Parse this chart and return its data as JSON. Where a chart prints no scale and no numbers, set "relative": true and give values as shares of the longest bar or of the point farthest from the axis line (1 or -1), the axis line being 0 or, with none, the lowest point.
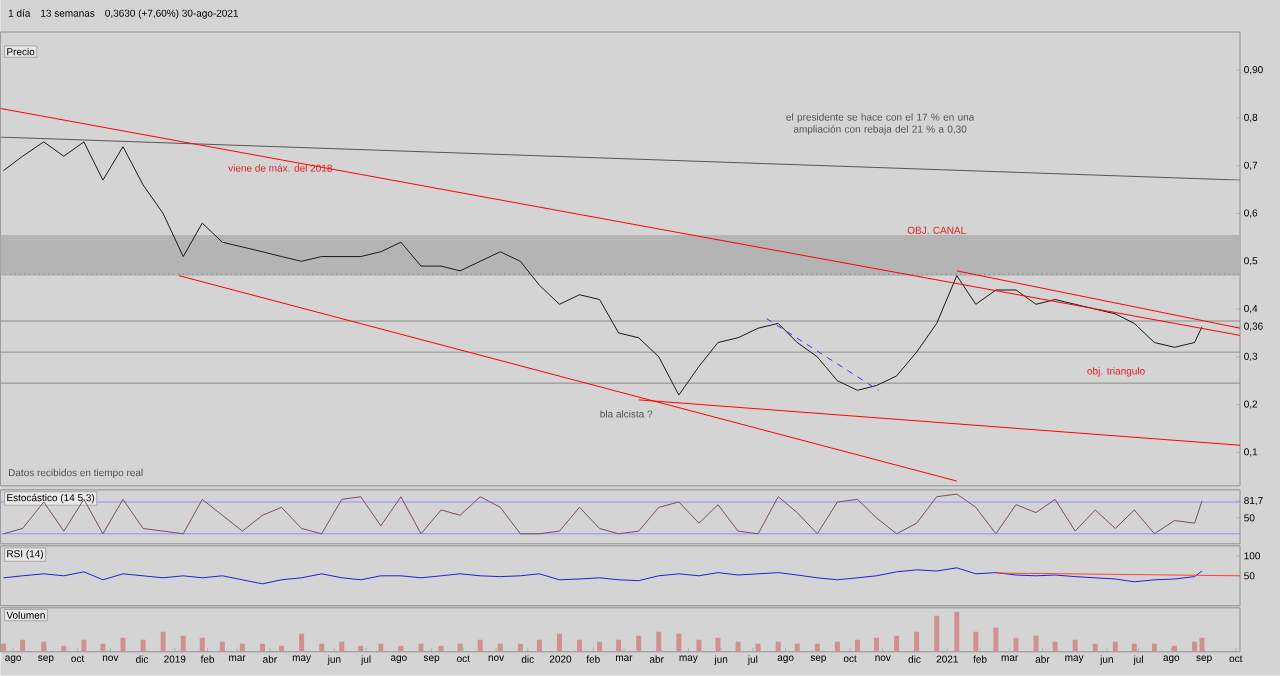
{
  "chart_data": [
    {
      "type": "line",
      "title": "Precio",
      "xlim": [
        "2018-07-20",
        "2021-10-05"
      ],
      "ylim": [
        0.03,
        0.98
      ],
      "tick_labels": "y",
      "yticks": [
        {
          "value": 0.1,
          "label": "0,1"
        },
        {
          "value": 0.2,
          "label": "0,2"
        },
        {
          "value": 0.3,
          "label": "0,3"
        },
        {
          "value": 0.363,
          "label": "0,36"
        },
        {
          "value": 0.4,
          "label": "0,4"
        },
        {
          "value": 0.5,
          "label": "0,5"
        },
        {
          "value": 0.6,
          "label": "0,6"
        },
        {
          "value": 0.7,
          "label": "0,7"
        },
        {
          "value": 0.8,
          "label": "0,8"
        },
        {
          "value": 0.9,
          "label": "0,90"
        }
      ],
      "x": [
        "2018-07-23",
        "2018-08-10",
        "2018-08-30",
        "2018-09-18",
        "2018-10-07",
        "2018-10-25",
        "2018-11-13",
        "2018-12-02",
        "2018-12-21",
        "2019-01-09",
        "2019-01-27",
        "2019-02-15",
        "2019-03-06",
        "2019-03-25",
        "2019-04-12",
        "2019-05-01",
        "2019-05-20",
        "2019-06-08",
        "2019-06-26",
        "2019-07-15",
        "2019-08-03",
        "2019-08-22",
        "2019-09-10",
        "2019-09-28",
        "2019-10-17",
        "2019-11-05",
        "2019-11-24",
        "2019-12-12",
        "2019-12-31",
        "2020-01-19",
        "2020-02-07",
        "2020-02-25",
        "2020-03-15",
        "2020-04-03",
        "2020-04-22",
        "2020-05-11",
        "2020-05-29",
        "2020-06-17",
        "2020-07-06",
        "2020-07-25",
        "2020-08-12",
        "2020-08-31",
        "2020-09-19",
        "2020-10-08",
        "2020-10-26",
        "2020-11-14",
        "2020-12-03",
        "2020-12-22",
        "2021-01-10",
        "2021-01-28",
        "2021-02-16",
        "2021-03-07",
        "2021-03-26",
        "2021-04-13",
        "2021-05-02",
        "2021-05-21",
        "2021-06-09",
        "2021-06-27",
        "2021-07-16",
        "2021-08-04",
        "2021-08-23",
        "2021-08-30"
      ],
      "series": [
        {
          "color": "#1a1a1a",
          "values": [
            0.69,
            0.72,
            0.75,
            0.72,
            0.75,
            0.67,
            0.74,
            0.66,
            0.6,
            0.51,
            0.58,
            0.54,
            0.53,
            0.52,
            0.51,
            0.5,
            0.51,
            0.51,
            0.51,
            0.52,
            0.54,
            0.49,
            0.49,
            0.48,
            0.5,
            0.52,
            0.5,
            0.45,
            0.41,
            0.43,
            0.42,
            0.35,
            0.34,
            0.3,
            0.22,
            0.28,
            0.33,
            0.34,
            0.36,
            0.37,
            0.33,
            0.3,
            0.25,
            0.23,
            0.24,
            0.26,
            0.31,
            0.37,
            0.47,
            0.41,
            0.44,
            0.44,
            0.41,
            0.42,
            0.41,
            0.4,
            0.39,
            0.37,
            0.33,
            0.32,
            0.33,
            0.363
          ]
        },
        {
          "type": "line",
          "color": "#555555",
          "x": [
            "2018-07-20",
            "2021-10-05"
          ],
          "values": [
            0.76,
            0.67
          ]
        },
        {
          "type": "line",
          "color": "#ff0000",
          "x": [
            "2018-07-20",
            "2021-10-05"
          ],
          "values": [
            0.82,
            0.345
          ]
        },
        {
          "type": "line",
          "color": "#ff0000",
          "x": [
            "2019-01-05",
            "2021-01-10"
          ],
          "values": [
            0.47,
            0.04
          ]
        },
        {
          "type": "line",
          "color": "#ff0000",
          "x": [
            "2020-03-15",
            "2021-10-05"
          ],
          "values": [
            0.21,
            0.115
          ]
        },
        {
          "type": "line",
          "color": "#ff0000",
          "x": [
            "2021-01-10",
            "2021-10-05"
          ],
          "values": [
            0.48,
            0.36
          ]
        },
        {
          "type": "line",
          "color": "#3030ff",
          "line_style": "dashed",
          "x": [
            "2020-07-14",
            "2020-10-28"
          ],
          "values": [
            0.38,
            0.23
          ]
        }
      ],
      "bands": [
        {
          "axis": "y",
          "from": 0.47,
          "to": 0.555,
          "color": "#b4b4b4"
        }
      ],
      "ref_lines": [
        {
          "axis": "y",
          "value": 0.473,
          "color": "#555555",
          "line_style": "dotted"
        },
        {
          "axis": "y",
          "value": 0.375,
          "color": "#777777"
        },
        {
          "axis": "y",
          "value": 0.31,
          "color": "#777777"
        },
        {
          "axis": "y",
          "value": 0.245,
          "color": "#777777"
        }
      ],
      "annotations": [
        "1 día",
        "13 semanas",
        "0,3630 (+7,60%) 30-ago-2021",
        "Datos recibidos en tiempo real",
        "el presidente se hace con el 17 % en una ampliación con rebaja del 21 % a 0,30",
        "obj. triangulo",
        "bla alcista ?",
        "viene de máx. del 2018",
        {
          "text": "OBJ. CANAL",
          "x": "2020-12-22",
          "y": 0.565
        }
      ]
    },
    {
      "type": "line",
      "title": "Estocástico (14 5 3)",
      "xlim": [
        "2018-07-20",
        "2021-10-05"
      ],
      "ylim": [
        1,
        103
      ],
      "tick_labels": "y",
      "yticks": [
        {
          "value": 50,
          "label": "50"
        },
        {
          "value": 81.7,
          "label": "81,7"
        }
      ],
      "x": [
        "2018-07-23",
        "2018-08-10",
        "2018-08-30",
        "2018-09-18",
        "2018-10-07",
        "2018-10-25",
        "2018-11-13",
        "2018-12-02",
        "2018-12-21",
        "2019-01-09",
        "2019-01-27",
        "2019-02-15",
        "2019-03-06",
        "2019-03-25",
        "2019-04-12",
        "2019-05-01",
        "2019-05-20",
        "2019-06-08",
        "2019-06-26",
        "2019-07-15",
        "2019-08-03",
        "2019-08-22",
        "2019-09-10",
        "2019-09-28",
        "2019-10-17",
        "2019-11-05",
        "2019-11-24",
        "2019-12-12",
        "2019-12-31",
        "2020-01-19",
        "2020-02-07",
        "2020-02-25",
        "2020-03-15",
        "2020-04-03",
        "2020-04-22",
        "2020-05-11",
        "2020-05-29",
        "2020-06-17",
        "2020-07-06",
        "2020-07-25",
        "2020-08-12",
        "2020-08-31",
        "2020-09-19",
        "2020-10-08",
        "2020-10-26",
        "2020-11-14",
        "2020-12-03",
        "2020-12-22",
        "2021-01-10",
        "2021-01-28",
        "2021-02-16",
        "2021-03-07",
        "2021-03-26",
        "2021-04-13",
        "2021-05-02",
        "2021-05-21",
        "2021-06-09",
        "2021-06-27",
        "2021-07-16",
        "2021-08-04",
        "2021-08-23",
        "2021-08-30"
      ],
      "series": [
        {
          "color": "#7a5050",
          "values": [
            20,
            30,
            80,
            25,
            85,
            20,
            85,
            30,
            25,
            20,
            85,
            55,
            25,
            55,
            70,
            30,
            20,
            85,
            90,
            35,
            90,
            20,
            65,
            55,
            90,
            70,
            20,
            20,
            25,
            70,
            30,
            20,
            25,
            70,
            80,
            40,
            75,
            25,
            20,
            90,
            60,
            20,
            80,
            85,
            50,
            20,
            40,
            90,
            95,
            70,
            20,
            75,
            60,
            85,
            25,
            65,
            30,
            65,
            20,
            45,
            40,
            82
          ]
        }
      ],
      "ref_lines": [
        {
          "axis": "y",
          "value": 80,
          "color": "#8080ff"
        },
        {
          "axis": "y",
          "value": 20,
          "color": "#8080ff"
        }
      ]
    },
    {
      "type": "line",
      "title": "RSI (14)",
      "xlim": [
        "2018-07-20",
        "2021-10-05"
      ],
      "ylim": [
        -25,
        125
      ],
      "tick_labels": "y",
      "yticks": [
        50,
        100
      ],
      "x": [
        "2018-07-23",
        "2018-08-10",
        "2018-08-30",
        "2018-09-18",
        "2018-10-07",
        "2018-10-25",
        "2018-11-13",
        "2018-12-02",
        "2018-12-21",
        "2019-01-09",
        "2019-01-27",
        "2019-02-15",
        "2019-03-06",
        "2019-03-25",
        "2019-04-12",
        "2019-05-01",
        "2019-05-20",
        "2019-06-08",
        "2019-06-26",
        "2019-07-15",
        "2019-08-03",
        "2019-08-22",
        "2019-09-10",
        "2019-09-28",
        "2019-10-17",
        "2019-11-05",
        "2019-11-24",
        "2019-12-12",
        "2019-12-31",
        "2020-01-19",
        "2020-02-07",
        "2020-02-25",
        "2020-03-15",
        "2020-04-03",
        "2020-04-22",
        "2020-05-11",
        "2020-05-29",
        "2020-06-17",
        "2020-07-06",
        "2020-07-25",
        "2020-08-12",
        "2020-08-31",
        "2020-09-19",
        "2020-10-08",
        "2020-10-26",
        "2020-11-14",
        "2020-12-03",
        "2020-12-22",
        "2021-01-10",
        "2021-01-28",
        "2021-02-16",
        "2021-03-07",
        "2021-03-26",
        "2021-04-13",
        "2021-05-02",
        "2021-05-21",
        "2021-06-09",
        "2021-06-27",
        "2021-07-16",
        "2021-08-04",
        "2021-08-23",
        "2021-08-30"
      ],
      "series": [
        {
          "color": "#2020d0",
          "values": [
            45,
            50,
            55,
            50,
            60,
            40,
            55,
            50,
            45,
            50,
            45,
            50,
            40,
            30,
            40,
            45,
            55,
            45,
            40,
            50,
            50,
            45,
            50,
            55,
            50,
            48,
            50,
            55,
            40,
            42,
            45,
            40,
            38,
            50,
            55,
            50,
            58,
            52,
            55,
            58,
            52,
            45,
            40,
            45,
            50,
            60,
            65,
            62,
            70,
            55,
            58,
            52,
            50,
            52,
            48,
            45,
            42,
            35,
            40,
            42,
            48,
            62
          ]
        },
        {
          "type": "line",
          "color": "#ff4040",
          "x": [
            "2021-02-16",
            "2021-10-05"
          ],
          "values": [
            57,
            50
          ]
        }
      ]
    },
    {
      "type": "bar",
      "title": "Volumen",
      "relative": true,
      "xlim": [
        "2018-07-20",
        "2021-10-05"
      ],
      "tick_labels": "x",
      "xticks": [
        {
          "value": "2018-08",
          "label": "ago"
        },
        {
          "value": "2018-09",
          "label": "sep"
        },
        {
          "value": "2018-10",
          "label": "oct"
        },
        {
          "value": "2018-11",
          "label": "nov"
        },
        {
          "value": "2018-12",
          "label": "dic"
        },
        {
          "value": "2019-01",
          "label": "2019"
        },
        {
          "value": "2019-02",
          "label": "feb"
        },
        {
          "value": "2019-03",
          "label": "mar"
        },
        {
          "value": "2019-04",
          "label": "abr"
        },
        {
          "value": "2019-05",
          "label": "may"
        },
        {
          "value": "2019-06",
          "label": "jun"
        },
        {
          "value": "2019-07",
          "label": "jul"
        },
        {
          "value": "2019-08",
          "label": "ago"
        },
        {
          "value": "2019-09",
          "label": "sep"
        },
        {
          "value": "2019-10",
          "label": "oct"
        },
        {
          "value": "2019-11",
          "label": "nov"
        },
        {
          "value": "2019-12",
          "label": "dic"
        },
        {
          "value": "2020-01",
          "label": "2020"
        },
        {
          "value": "2020-02",
          "label": "feb"
        },
        {
          "value": "2020-03",
          "label": "mar"
        },
        {
          "value": "2020-04",
          "label": "abr"
        },
        {
          "value": "2020-05",
          "label": "may"
        },
        {
          "value": "2020-06",
          "label": "jun"
        },
        {
          "value": "2020-07",
          "label": "jul"
        },
        {
          "value": "2020-08",
          "label": "ago"
        },
        {
          "value": "2020-09",
          "label": "sep"
        },
        {
          "value": "2020-10",
          "label": "oct"
        },
        {
          "value": "2020-11",
          "label": "nov"
        },
        {
          "value": "2020-12",
          "label": "dic"
        },
        {
          "value": "2021-01",
          "label": "2021"
        },
        {
          "value": "2021-02",
          "label": "feb"
        },
        {
          "value": "2021-03",
          "label": "mar"
        },
        {
          "value": "2021-04",
          "label": "abr"
        },
        {
          "value": "2021-05",
          "label": "may"
        },
        {
          "value": "2021-06",
          "label": "jun"
        },
        {
          "value": "2021-07",
          "label": "jul"
        },
        {
          "value": "2021-08",
          "label": "ago"
        },
        {
          "value": "2021-09",
          "label": "sep"
        },
        {
          "value": "2021-10",
          "label": "oct"
        }
      ],
      "x": [
        "2018-07-23",
        "2018-08-10",
        "2018-08-30",
        "2018-09-18",
        "2018-10-07",
        "2018-10-25",
        "2018-11-13",
        "2018-12-02",
        "2018-12-21",
        "2019-01-09",
        "2019-01-27",
        "2019-02-15",
        "2019-03-06",
        "2019-03-25",
        "2019-04-12",
        "2019-05-01",
        "2019-05-20",
        "2019-06-08",
        "2019-06-26",
        "2019-07-15",
        "2019-08-03",
        "2019-08-22",
        "2019-09-10",
        "2019-09-28",
        "2019-10-17",
        "2019-11-05",
        "2019-11-24",
        "2019-12-12",
        "2019-12-31",
        "2020-01-19",
        "2020-02-07",
        "2020-02-25",
        "2020-03-15",
        "2020-04-03",
        "2020-04-22",
        "2020-05-11",
        "2020-05-29",
        "2020-06-17",
        "2020-07-06",
        "2020-07-25",
        "2020-08-12",
        "2020-08-31",
        "2020-09-19",
        "2020-10-08",
        "2020-10-26",
        "2020-11-14",
        "2020-12-03",
        "2020-12-22",
        "2021-01-10",
        "2021-01-28",
        "2021-02-16",
        "2021-03-07",
        "2021-03-26",
        "2021-04-13",
        "2021-05-02",
        "2021-05-21",
        "2021-06-09",
        "2021-06-27",
        "2021-07-16",
        "2021-08-04",
        "2021-08-23",
        "2021-08-30"
      ],
      "series": [
        {
          "color": "#d09090",
          "values": [
            0.2,
            0.3,
            0.25,
            0.15,
            0.3,
            0.2,
            0.35,
            0.3,
            0.5,
            0.4,
            0.35,
            0.25,
            0.2,
            0.2,
            0.15,
            0.45,
            0.2,
            0.25,
            0.15,
            0.2,
            0.15,
            0.2,
            0.15,
            0.2,
            0.3,
            0.2,
            0.2,
            0.3,
            0.45,
            0.3,
            0.25,
            0.3,
            0.4,
            0.5,
            0.45,
            0.3,
            0.35,
            0.25,
            0.2,
            0.25,
            0.2,
            0.2,
            0.25,
            0.3,
            0.35,
            0.4,
            0.5,
            0.9,
            1.0,
            0.5,
            0.6,
            0.35,
            0.4,
            0.25,
            0.3,
            0.2,
            0.25,
            0.2,
            0.2,
            0.15,
            0.25,
            0.35
          ]
        }
      ]
    }
  ]
}
